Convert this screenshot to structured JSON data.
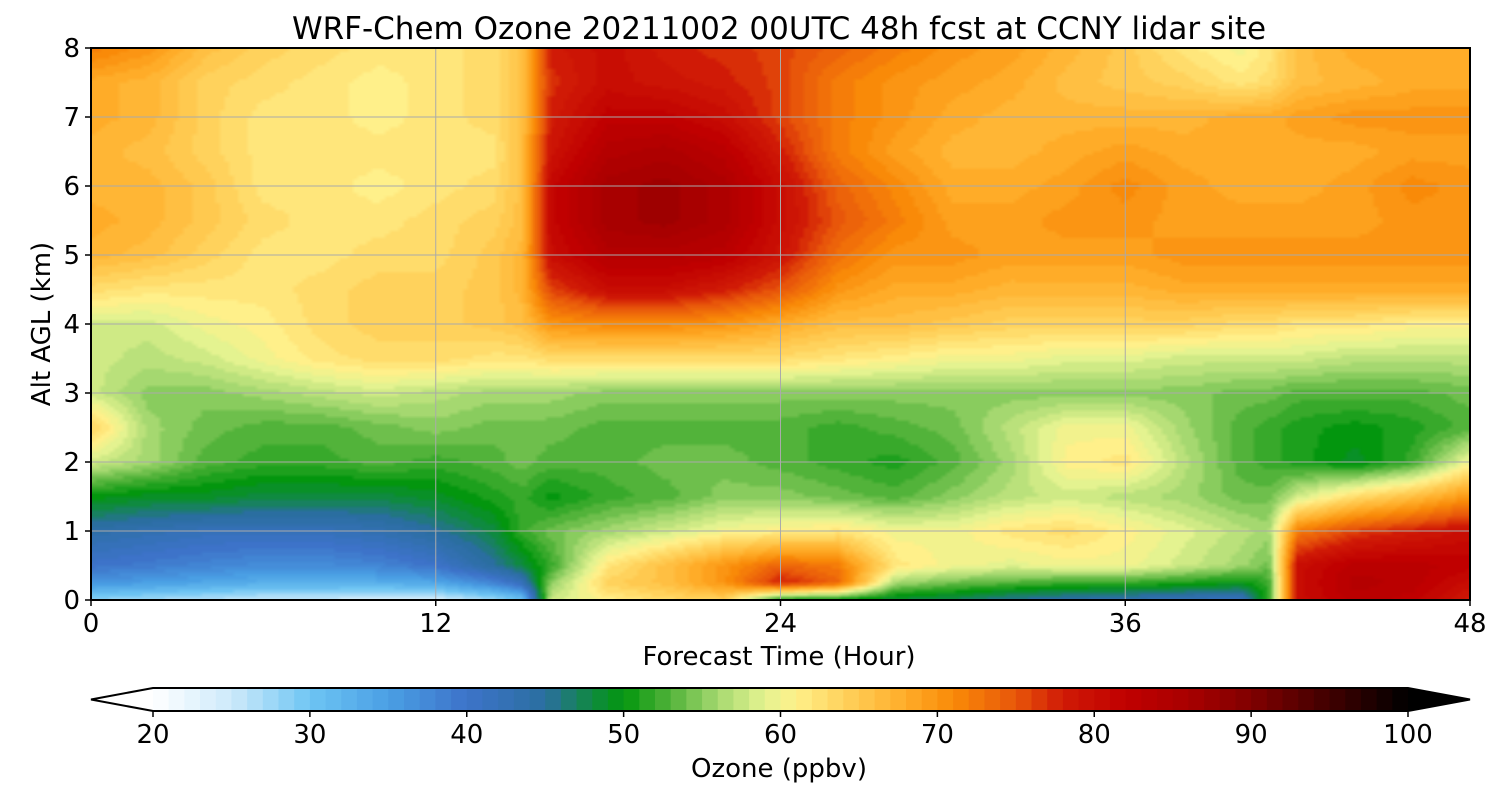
{
  "chart_data": {
    "type": "heatmap",
    "title": "WRF-Chem Ozone  20211002 00UTC 48h fcst at CCNY lidar site",
    "xlabel": "Forecast Time (Hour)",
    "ylabel": "Alt AGL (km)",
    "xlim": [
      0,
      48
    ],
    "ylim": [
      0,
      8
    ],
    "x_ticks": [
      0,
      12,
      24,
      36,
      48
    ],
    "y_ticks": [
      0,
      1,
      2,
      3,
      4,
      5,
      6,
      7,
      8
    ],
    "grid": true,
    "x": [
      0,
      2,
      4,
      6,
      8,
      10,
      12,
      14,
      15,
      16,
      18,
      20,
      22,
      24,
      26,
      28,
      30,
      32,
      34,
      36,
      38,
      40,
      41,
      42,
      44,
      46,
      48
    ],
    "y": [
      0,
      0.25,
      0.5,
      1,
      1.5,
      2,
      2.5,
      3,
      3.5,
      4,
      4.5,
      5,
      5.5,
      6,
      6.5,
      7,
      7.5,
      8
    ],
    "z": [
      [
        28,
        27,
        26,
        25,
        25,
        24,
        24,
        27,
        30,
        58,
        61,
        63,
        64,
        50,
        49,
        48,
        47,
        45,
        44,
        43,
        42,
        41,
        52,
        80,
        83,
        82,
        78
      ],
      [
        36,
        35,
        34,
        33,
        33,
        33,
        34,
        38,
        42,
        55,
        64,
        66,
        70,
        78,
        74,
        56,
        54,
        53,
        52,
        52,
        51,
        50,
        52,
        80,
        84,
        83,
        80
      ],
      [
        40,
        39,
        38,
        37,
        37,
        38,
        40,
        45,
        48,
        52,
        62,
        66,
        70,
        74,
        72,
        62,
        60,
        59,
        60,
        60,
        58,
        56,
        54,
        80,
        83,
        83,
        82
      ],
      [
        44,
        43,
        42,
        42,
        42,
        43,
        45,
        48,
        52,
        54,
        56,
        58,
        60,
        61,
        62,
        60,
        60,
        62,
        63,
        61,
        59,
        57,
        56,
        72,
        76,
        78,
        80
      ],
      [
        50,
        49,
        49,
        48,
        48,
        48,
        49,
        51,
        52,
        50,
        52,
        53,
        55,
        55,
        54,
        53,
        55,
        57,
        58,
        57,
        56,
        54,
        54,
        58,
        63,
        66,
        70
      ],
      [
        58,
        56,
        53,
        52,
        52,
        53,
        52,
        53,
        54,
        53,
        53,
        54,
        54,
        53,
        52,
        51,
        53,
        56,
        61,
        62,
        57,
        53,
        52,
        51,
        49,
        52,
        60
      ],
      [
        64,
        56,
        54,
        53,
        53,
        54,
        55,
        54,
        54,
        54,
        53,
        53,
        53,
        53,
        52,
        53,
        54,
        57,
        60,
        60,
        56,
        53,
        52,
        51,
        50,
        51,
        53
      ],
      [
        58,
        55,
        55,
        56,
        57,
        58,
        57,
        56,
        56,
        56,
        55,
        55,
        55,
        55,
        55,
        55,
        55,
        55,
        55,
        55,
        55,
        54,
        54,
        53,
        53,
        53,
        54
      ],
      [
        58,
        57,
        58,
        60,
        62,
        63,
        63,
        62,
        62,
        63,
        63,
        63,
        63,
        63,
        62,
        61,
        60,
        60,
        59,
        59,
        58,
        58,
        58,
        58,
        57,
        57,
        57
      ],
      [
        58,
        58,
        60,
        61,
        63,
        64,
        64,
        65,
        66,
        70,
        71,
        71,
        70,
        68,
        66,
        66,
        65,
        64,
        64,
        64,
        64,
        63,
        63,
        62,
        62,
        61,
        61
      ],
      [
        63,
        62,
        62,
        62,
        63,
        64,
        64,
        65,
        67,
        76,
        80,
        80,
        78,
        75,
        70,
        68,
        68,
        67,
        67,
        67,
        68,
        68,
        68,
        68,
        68,
        68,
        68
      ],
      [
        67,
        66,
        64,
        62,
        62,
        63,
        63,
        65,
        67,
        80,
        84,
        84,
        83,
        79,
        73,
        70,
        70,
        69,
        69,
        69,
        70,
        70,
        70,
        70,
        70,
        70,
        70
      ],
      [
        68,
        67,
        65,
        63,
        62,
        62,
        63,
        64,
        66,
        81,
        86,
        87,
        85,
        80,
        75,
        72,
        69,
        69,
        70,
        70,
        69,
        69,
        69,
        69,
        69,
        70,
        70
      ],
      [
        67,
        67,
        65,
        62,
        62,
        61,
        62,
        63,
        66,
        81,
        86,
        87,
        85,
        80,
        74,
        71,
        68,
        68,
        69,
        71,
        69,
        68,
        68,
        68,
        69,
        71,
        70
      ],
      [
        67,
        66,
        64,
        62,
        62,
        62,
        62,
        62,
        66,
        79,
        84,
        85,
        83,
        78,
        72,
        69,
        67,
        67,
        68,
        69,
        68,
        68,
        68,
        68,
        68,
        69,
        69
      ],
      [
        68,
        67,
        64,
        62,
        62,
        61,
        62,
        63,
        66,
        78,
        82,
        82,
        80,
        76,
        72,
        70,
        68,
        67,
        67,
        67,
        67,
        68,
        68,
        69,
        70,
        70,
        70
      ],
      [
        68,
        67,
        64,
        63,
        62,
        61,
        62,
        63,
        66,
        77,
        80,
        79,
        78,
        76,
        72,
        70,
        69,
        68,
        66,
        65,
        64,
        62,
        63,
        66,
        67,
        68,
        68
      ],
      [
        72,
        70,
        66,
        64,
        63,
        62,
        62,
        63,
        66,
        78,
        80,
        78,
        77,
        76,
        74,
        72,
        70,
        69,
        67,
        65,
        62,
        60,
        62,
        66,
        68,
        68,
        68
      ]
    ],
    "colorbar": {
      "label": "Ozone  (ppbv)",
      "min": 20,
      "max": 100,
      "step": 1,
      "ticks": [
        20,
        30,
        40,
        50,
        60,
        70,
        80,
        90,
        100
      ],
      "extend": "both"
    },
    "color_stops": [
      [
        20,
        "#ffffff"
      ],
      [
        25,
        "#cdeafa"
      ],
      [
        30,
        "#6ec5f3"
      ],
      [
        35,
        "#4a9fe4"
      ],
      [
        40,
        "#3d73c9"
      ],
      [
        45,
        "#2a6ea0"
      ],
      [
        48,
        "#0f8a40"
      ],
      [
        50,
        "#03960e"
      ],
      [
        53,
        "#52b33a"
      ],
      [
        56,
        "#a5d870"
      ],
      [
        59,
        "#e4f390"
      ],
      [
        61,
        "#fff08a"
      ],
      [
        64,
        "#ffd25c"
      ],
      [
        68,
        "#ffac28"
      ],
      [
        71,
        "#f98a08"
      ],
      [
        75,
        "#e8560a"
      ],
      [
        78,
        "#d01a06"
      ],
      [
        82,
        "#c00000"
      ],
      [
        86,
        "#a80000"
      ],
      [
        90,
        "#800000"
      ],
      [
        95,
        "#400000"
      ],
      [
        100,
        "#000000"
      ]
    ]
  }
}
